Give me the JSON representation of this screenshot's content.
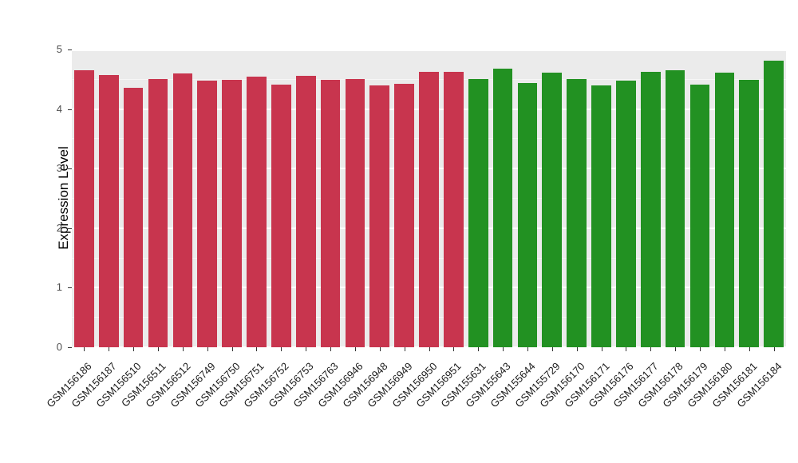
{
  "chart_data": {
    "type": "bar",
    "title": "",
    "xlabel": "",
    "ylabel": "Expression Level",
    "ylim": [
      0,
      5
    ],
    "yticks": [
      0,
      1,
      2,
      3,
      4,
      5
    ],
    "minor_ticks": [
      0.5,
      1.5,
      2.5,
      3.5,
      4.5
    ],
    "grid": true,
    "legend": false,
    "panel_background": "#EBEBEB",
    "group_colors": {
      "red": "#C8354E",
      "green": "#229122"
    },
    "bars": [
      {
        "label": "GSM156186",
        "value": 4.65,
        "group": "red"
      },
      {
        "label": "GSM156187",
        "value": 4.57,
        "group": "red"
      },
      {
        "label": "GSM156510",
        "value": 4.36,
        "group": "red"
      },
      {
        "label": "GSM156511",
        "value": 4.5,
        "group": "red"
      },
      {
        "label": "GSM156512",
        "value": 4.6,
        "group": "red"
      },
      {
        "label": "GSM156749",
        "value": 4.48,
        "group": "red"
      },
      {
        "label": "GSM156750",
        "value": 4.49,
        "group": "red"
      },
      {
        "label": "GSM156751",
        "value": 4.54,
        "group": "red"
      },
      {
        "label": "GSM156752",
        "value": 4.41,
        "group": "red"
      },
      {
        "label": "GSM156753",
        "value": 4.56,
        "group": "red"
      },
      {
        "label": "GSM156763",
        "value": 4.49,
        "group": "red"
      },
      {
        "label": "GSM156946",
        "value": 4.5,
        "group": "red"
      },
      {
        "label": "GSM156948",
        "value": 4.4,
        "group": "red"
      },
      {
        "label": "GSM156949",
        "value": 4.42,
        "group": "red"
      },
      {
        "label": "GSM156950",
        "value": 4.62,
        "group": "red"
      },
      {
        "label": "GSM156951",
        "value": 4.62,
        "group": "red"
      },
      {
        "label": "GSM155631",
        "value": 4.5,
        "group": "green"
      },
      {
        "label": "GSM155643",
        "value": 4.68,
        "group": "green"
      },
      {
        "label": "GSM155644",
        "value": 4.44,
        "group": "green"
      },
      {
        "label": "GSM155729",
        "value": 4.61,
        "group": "green"
      },
      {
        "label": "GSM156170",
        "value": 4.5,
        "group": "green"
      },
      {
        "label": "GSM156171",
        "value": 4.4,
        "group": "green"
      },
      {
        "label": "GSM156176",
        "value": 4.48,
        "group": "green"
      },
      {
        "label": "GSM156177",
        "value": 4.62,
        "group": "green"
      },
      {
        "label": "GSM156178",
        "value": 4.65,
        "group": "green"
      },
      {
        "label": "GSM156179",
        "value": 4.41,
        "group": "green"
      },
      {
        "label": "GSM156180",
        "value": 4.61,
        "group": "green"
      },
      {
        "label": "GSM156181",
        "value": 4.49,
        "group": "green"
      },
      {
        "label": "GSM156184",
        "value": 4.81,
        "group": "green"
      }
    ]
  }
}
